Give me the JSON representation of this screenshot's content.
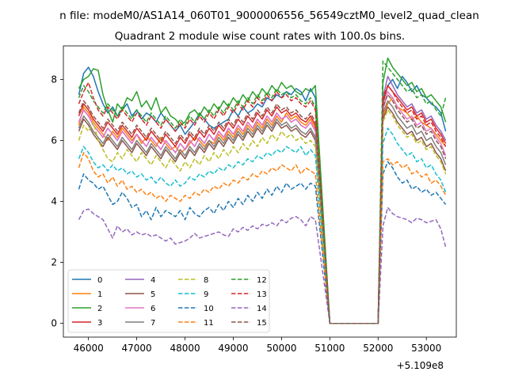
{
  "chart_data": {
    "type": "line",
    "suptitle": "n file: modeM0/AS1A14_060T01_9000006556_56549cztM0_level2_quad_clean",
    "title": "Quadrant 2 module wise count rates with 100.0s bins.",
    "xlabel": "",
    "ylabel": "",
    "x_offset_label": "+5.109e8",
    "xlim": [
      45480,
      53620
    ],
    "ylim": [
      -0.45,
      9.1
    ],
    "xticks": [
      46000,
      47000,
      48000,
      49000,
      50000,
      51000,
      52000,
      53000
    ],
    "xtick_labels": [
      "46000",
      "47000",
      "48000",
      "49000",
      "50000",
      "51000",
      "52000",
      "53000"
    ],
    "yticks": [
      0,
      2,
      4,
      6,
      8
    ],
    "ytick_labels": [
      "0",
      "2",
      "4",
      "6",
      "8"
    ],
    "x_start": 45800,
    "x_step": 100,
    "gap_x": [
      51000,
      52000
    ],
    "legend_position": "lower-left",
    "series": [
      {
        "name": "0",
        "color": "#1f77b4",
        "dash": false,
        "before": [
          7.5,
          8.2,
          8.4,
          8.1,
          7.6,
          7.2,
          6.9,
          7.1,
          6.8,
          7.0,
          7.2,
          6.8,
          7.0,
          6.7,
          6.9,
          6.8,
          6.6,
          6.9,
          6.7,
          6.5,
          6.3,
          6.5,
          6.2,
          6.4,
          6.6,
          6.9,
          6.7,
          6.5,
          6.4,
          6.5,
          6.6,
          6.7,
          7.0,
          6.8,
          7.1,
          6.9,
          7.0,
          7.2,
          7.1,
          7.4,
          7.3,
          7.5,
          7.4,
          7.6,
          7.5,
          7.7,
          7.6,
          7.3,
          7.7,
          7.4
        ],
        "after": [
          7.3,
          7.8,
          8.0,
          7.7,
          8.1,
          7.9,
          7.6,
          7.8,
          7.5,
          7.4,
          7.2,
          7.1,
          6.9,
          6.3
        ]
      },
      {
        "name": "1",
        "color": "#ff7f0e",
        "dash": false,
        "before": [
          6.5,
          7.1,
          6.9,
          6.6,
          6.4,
          6.2,
          6.0,
          6.3,
          6.1,
          6.4,
          6.2,
          6.0,
          6.2,
          5.9,
          6.1,
          6.0,
          5.8,
          6.1,
          5.9,
          5.7,
          5.8,
          5.6,
          5.7,
          5.9,
          6.1,
          6.0,
          5.8,
          6.0,
          5.9,
          6.2,
          6.0,
          6.3,
          6.1,
          6.4,
          6.2,
          6.5,
          6.3,
          6.6,
          6.4,
          6.7,
          6.5,
          6.8,
          6.6,
          6.9,
          6.7,
          6.8,
          6.6,
          6.5,
          6.7,
          6.4
        ],
        "after": [
          6.8,
          7.2,
          7.4,
          7.1,
          7.0,
          6.9,
          6.7,
          6.8,
          6.6,
          6.5,
          6.4,
          6.2,
          6.0,
          5.8
        ]
      },
      {
        "name": "2",
        "color": "#2ca02c",
        "dash": false,
        "before": [
          7.7,
          8.0,
          8.1,
          8.35,
          8.3,
          7.5,
          7.0,
          6.6,
          7.2,
          7.0,
          7.4,
          7.3,
          7.6,
          7.1,
          7.3,
          7.0,
          7.4,
          6.9,
          7.1,
          6.8,
          6.7,
          6.5,
          6.6,
          6.9,
          7.0,
          6.8,
          7.1,
          6.9,
          7.2,
          7.0,
          7.3,
          7.1,
          7.4,
          7.2,
          7.5,
          7.3,
          7.6,
          7.4,
          7.7,
          7.5,
          7.8,
          7.6,
          7.9,
          7.7,
          7.8,
          7.6,
          7.5,
          7.7,
          7.6,
          7.8
        ],
        "after": [
          7.9,
          8.7,
          8.4,
          8.2,
          8.0,
          7.8,
          7.9,
          7.6,
          7.7,
          7.4,
          7.5,
          7.3,
          7.1,
          6.6
        ]
      },
      {
        "name": "3",
        "color": "#d62728",
        "dash": false,
        "before": [
          6.8,
          7.2,
          7.0,
          6.7,
          6.5,
          6.3,
          6.6,
          6.4,
          6.2,
          6.5,
          6.3,
          6.1,
          6.4,
          6.2,
          6.0,
          6.3,
          6.1,
          5.9,
          6.2,
          6.0,
          5.8,
          6.1,
          5.9,
          6.2,
          6.0,
          6.3,
          6.1,
          6.4,
          6.2,
          6.5,
          6.3,
          6.6,
          6.4,
          6.7,
          6.5,
          6.8,
          6.6,
          6.9,
          6.7,
          7.0,
          6.8,
          7.1,
          6.9,
          7.0,
          6.8,
          6.9,
          6.7,
          6.6,
          6.8,
          6.5
        ],
        "after": [
          7.2,
          7.8,
          7.6,
          7.4,
          7.2,
          7.0,
          7.1,
          6.8,
          6.9,
          6.6,
          6.7,
          6.4,
          6.2,
          5.9
        ]
      },
      {
        "name": "4",
        "color": "#9467bd",
        "dash": false,
        "before": [
          6.6,
          7.0,
          6.8,
          6.5,
          6.3,
          6.1,
          6.4,
          6.2,
          6.0,
          6.3,
          6.1,
          5.9,
          6.2,
          6.0,
          5.8,
          6.1,
          5.9,
          5.7,
          6.0,
          5.8,
          5.6,
          5.9,
          5.7,
          6.0,
          5.8,
          6.1,
          5.9,
          6.2,
          6.0,
          6.3,
          6.1,
          6.4,
          6.2,
          6.5,
          6.3,
          6.6,
          6.4,
          6.7,
          6.5,
          6.8,
          6.6,
          6.9,
          6.7,
          6.8,
          6.6,
          6.7,
          6.5,
          6.4,
          6.6,
          6.3
        ],
        "after": [
          7.4,
          8.1,
          7.8,
          7.5,
          7.3,
          7.1,
          7.2,
          6.9,
          7.0,
          6.7,
          6.8,
          6.5,
          6.3,
          6.0
        ]
      },
      {
        "name": "5",
        "color": "#8c564b",
        "dash": false,
        "before": [
          6.3,
          6.7,
          6.5,
          6.2,
          6.0,
          5.8,
          6.1,
          5.9,
          5.7,
          6.0,
          5.8,
          5.6,
          5.9,
          5.7,
          5.5,
          5.8,
          5.6,
          5.4,
          5.7,
          5.5,
          5.3,
          5.6,
          5.4,
          5.7,
          5.5,
          5.8,
          5.6,
          5.9,
          5.7,
          6.0,
          5.8,
          6.1,
          5.9,
          6.2,
          6.0,
          6.3,
          6.1,
          6.4,
          6.2,
          6.5,
          6.3,
          6.6,
          6.4,
          6.5,
          6.3,
          6.4,
          6.2,
          6.1,
          6.3,
          6.0
        ],
        "after": [
          6.7,
          7.1,
          6.9,
          6.6,
          6.4,
          6.2,
          6.3,
          6.0,
          6.1,
          5.8,
          5.9,
          5.6,
          5.4,
          5.0
        ]
      },
      {
        "name": "6",
        "color": "#e377c2",
        "dash": false,
        "before": [
          6.6,
          7.0,
          6.8,
          6.5,
          6.3,
          6.1,
          6.4,
          6.2,
          6.0,
          6.3,
          6.1,
          5.9,
          6.2,
          6.0,
          5.8,
          6.1,
          5.9,
          5.7,
          6.0,
          5.8,
          5.6,
          5.9,
          5.7,
          6.0,
          5.8,
          6.1,
          5.9,
          6.2,
          6.0,
          6.3,
          6.1,
          6.4,
          6.2,
          6.5,
          6.3,
          6.6,
          6.4,
          6.7,
          6.5,
          6.8,
          6.6,
          6.9,
          6.7,
          6.8,
          6.6,
          6.7,
          6.5,
          6.4,
          6.6,
          6.3
        ],
        "after": [
          7.0,
          7.6,
          7.4,
          7.1,
          6.9,
          6.7,
          6.8,
          6.5,
          6.6,
          6.3,
          6.4,
          6.1,
          5.9,
          5.5
        ]
      },
      {
        "name": "7",
        "color": "#7f7f7f",
        "dash": false,
        "before": [
          6.4,
          6.8,
          6.6,
          6.3,
          6.1,
          5.9,
          6.2,
          6.0,
          5.8,
          6.1,
          5.9,
          5.7,
          6.0,
          5.8,
          5.6,
          5.9,
          5.7,
          5.5,
          5.8,
          5.6,
          5.4,
          5.7,
          5.5,
          5.8,
          5.6,
          5.9,
          5.7,
          6.0,
          5.8,
          6.1,
          5.9,
          6.2,
          6.0,
          6.3,
          6.1,
          6.4,
          6.2,
          6.5,
          6.3,
          6.6,
          6.4,
          6.7,
          6.5,
          6.6,
          6.4,
          6.5,
          6.3,
          6.2,
          6.4,
          6.1
        ],
        "after": [
          6.9,
          7.3,
          7.1,
          6.8,
          6.6,
          6.4,
          6.5,
          6.2,
          6.3,
          6.0,
          6.1,
          5.8,
          5.6,
          5.2
        ]
      },
      {
        "name": "8",
        "color": "#bcbd22",
        "dash": true,
        "before": [
          6.0,
          6.5,
          6.3,
          6.6,
          6.0,
          5.7,
          5.4,
          5.3,
          5.6,
          5.4,
          5.7,
          5.5,
          5.3,
          5.6,
          5.4,
          5.2,
          5.5,
          5.3,
          5.1,
          5.4,
          5.2,
          5.0,
          5.3,
          5.1,
          5.4,
          5.2,
          5.5,
          5.3,
          5.6,
          5.4,
          5.7,
          5.5,
          5.8,
          5.6,
          5.9,
          5.7,
          6.0,
          5.8,
          6.1,
          5.9,
          6.2,
          6.0,
          6.3,
          6.1,
          6.2,
          6.0,
          6.1,
          5.9,
          6.0,
          5.8
        ],
        "after": [
          6.6,
          7.0,
          6.8,
          6.5,
          6.3,
          6.1,
          6.2,
          5.9,
          6.0,
          5.7,
          5.8,
          5.5,
          5.3,
          4.9
        ]
      },
      {
        "name": "9",
        "color": "#17becf",
        "dash": true,
        "before": [
          5.4,
          5.8,
          5.6,
          5.3,
          5.1,
          5.2,
          5.0,
          5.2,
          5.0,
          5.1,
          4.9,
          5.0,
          4.8,
          4.9,
          4.7,
          4.8,
          4.6,
          4.8,
          4.6,
          4.5,
          4.7,
          4.5,
          4.6,
          4.8,
          4.7,
          4.9,
          4.8,
          5.0,
          4.9,
          5.1,
          5.0,
          5.2,
          5.1,
          5.3,
          5.2,
          5.4,
          5.3,
          5.5,
          5.4,
          5.6,
          5.5,
          5.7,
          5.6,
          5.8,
          5.7,
          5.6,
          5.8,
          5.5,
          5.7,
          5.5
        ],
        "after": [
          5.9,
          6.4,
          6.2,
          5.9,
          5.7,
          5.5,
          5.6,
          5.3,
          5.4,
          5.1,
          5.2,
          4.9,
          4.7,
          4.3
        ]
      },
      {
        "name": "10",
        "color": "#1f77b4",
        "dash": true,
        "before": [
          4.4,
          4.9,
          4.7,
          4.6,
          4.4,
          4.5,
          4.2,
          3.9,
          4.0,
          4.3,
          4.1,
          3.8,
          3.9,
          3.5,
          3.7,
          3.4,
          3.8,
          3.5,
          3.7,
          3.6,
          3.5,
          3.7,
          3.4,
          3.8,
          3.6,
          3.5,
          3.7,
          3.8,
          3.6,
          3.9,
          3.7,
          4.0,
          3.8,
          4.1,
          3.9,
          4.2,
          4.0,
          4.3,
          4.1,
          4.4,
          4.2,
          4.5,
          4.3,
          4.6,
          4.4,
          4.5,
          4.6,
          4.4,
          4.6,
          4.5
        ],
        "after": [
          4.9,
          5.3,
          5.1,
          4.8,
          4.6,
          4.7,
          4.4,
          4.5,
          4.3,
          4.4,
          4.2,
          4.3,
          4.1,
          3.9
        ]
      },
      {
        "name": "11",
        "color": "#ff7f0e",
        "dash": true,
        "before": [
          5.1,
          5.6,
          5.4,
          5.0,
          4.8,
          4.9,
          4.6,
          4.8,
          4.5,
          4.7,
          4.4,
          4.5,
          4.3,
          4.4,
          4.2,
          4.3,
          4.1,
          4.2,
          4.0,
          4.2,
          4.1,
          4.0,
          4.2,
          4.1,
          4.3,
          4.2,
          4.4,
          4.3,
          4.5,
          4.4,
          4.6,
          4.5,
          4.7,
          4.6,
          4.8,
          4.7,
          4.9,
          4.8,
          5.0,
          4.9,
          5.1,
          5.0,
          5.2,
          5.1,
          5.0,
          5.2,
          4.9,
          5.1,
          5.0,
          4.9
        ],
        "after": [
          5.3,
          5.4,
          5.2,
          5.3,
          5.1,
          5.2,
          4.9,
          5.0,
          4.8,
          4.9,
          4.6,
          4.7,
          4.5,
          4.2
        ]
      },
      {
        "name": "12",
        "color": "#2ca02c",
        "dash": true,
        "before": [
          7.4,
          7.8,
          7.6,
          7.3,
          7.1,
          6.9,
          7.2,
          7.0,
          6.8,
          7.1,
          6.9,
          6.7,
          7.0,
          6.8,
          6.6,
          6.9,
          6.7,
          6.5,
          6.8,
          6.6,
          6.4,
          6.7,
          6.5,
          6.8,
          6.6,
          6.9,
          6.7,
          7.0,
          6.8,
          7.1,
          6.9,
          7.2,
          7.0,
          7.3,
          7.1,
          7.4,
          7.2,
          7.5,
          7.3,
          7.6,
          7.4,
          7.7,
          7.5,
          7.6,
          7.4,
          7.5,
          7.3,
          7.2,
          7.4,
          7.1
        ],
        "after": [
          8.6,
          8.4,
          8.2,
          8.0,
          7.8,
          7.6,
          7.7,
          7.4,
          7.5,
          7.2,
          7.3,
          7.0,
          6.8,
          7.4
        ]
      },
      {
        "name": "13",
        "color": "#d62728",
        "dash": true,
        "before": [
          7.2,
          7.6,
          7.9,
          7.4,
          7.0,
          6.8,
          7.1,
          6.9,
          6.7,
          7.0,
          6.8,
          6.6,
          6.9,
          6.7,
          6.5,
          6.8,
          6.6,
          6.4,
          6.7,
          6.5,
          6.3,
          6.6,
          6.4,
          6.7,
          6.5,
          6.8,
          6.6,
          6.9,
          6.7,
          7.0,
          6.8,
          7.1,
          6.9,
          7.2,
          7.0,
          7.3,
          7.1,
          7.4,
          7.2,
          7.5,
          7.3,
          7.6,
          7.4,
          7.5,
          7.3,
          7.4,
          7.2,
          7.1,
          7.3,
          7.0
        ],
        "after": [
          7.4,
          7.8,
          7.6,
          7.3,
          7.1,
          6.9,
          7.0,
          6.7,
          6.8,
          6.5,
          6.6,
          6.3,
          6.1,
          5.8
        ]
      },
      {
        "name": "14",
        "color": "#9467bd",
        "dash": true,
        "before": [
          3.4,
          3.7,
          3.75,
          3.6,
          3.5,
          3.4,
          3.1,
          2.8,
          3.2,
          3.0,
          3.1,
          2.9,
          3.0,
          2.9,
          2.95,
          2.85,
          2.9,
          2.8,
          2.7,
          2.8,
          2.6,
          2.65,
          2.7,
          2.8,
          2.95,
          2.8,
          2.85,
          2.9,
          2.95,
          3.0,
          2.9,
          2.85,
          3.1,
          3.0,
          3.15,
          3.05,
          3.2,
          3.1,
          3.25,
          3.2,
          3.3,
          3.2,
          3.4,
          3.3,
          3.45,
          3.5,
          3.4,
          3.2,
          3.5,
          3.4
        ],
        "after": [
          3.2,
          3.8,
          3.6,
          3.5,
          3.45,
          3.4,
          3.3,
          3.45,
          3.4,
          3.3,
          3.35,
          3.4,
          3.1,
          2.5
        ]
      },
      {
        "name": "15",
        "color": "#8c564b",
        "dash": true,
        "before": [
          6.9,
          7.3,
          7.1,
          6.8,
          6.6,
          6.4,
          6.7,
          6.5,
          6.3,
          6.6,
          6.4,
          6.2,
          6.5,
          6.3,
          6.1,
          6.4,
          6.2,
          6.0,
          6.3,
          6.1,
          5.9,
          6.2,
          6.0,
          6.3,
          6.1,
          6.4,
          6.2,
          6.5,
          6.3,
          6.6,
          6.4,
          6.7,
          6.5,
          6.8,
          6.6,
          6.9,
          6.7,
          7.0,
          6.8,
          7.1,
          6.9,
          7.2,
          7.0,
          7.1,
          6.9,
          7.0,
          6.8,
          6.7,
          6.9,
          6.6
        ],
        "after": [
          7.1,
          7.5,
          7.3,
          7.0,
          6.8,
          6.6,
          6.7,
          6.4,
          6.5,
          6.2,
          6.3,
          6.0,
          5.8,
          5.4
        ]
      }
    ]
  }
}
